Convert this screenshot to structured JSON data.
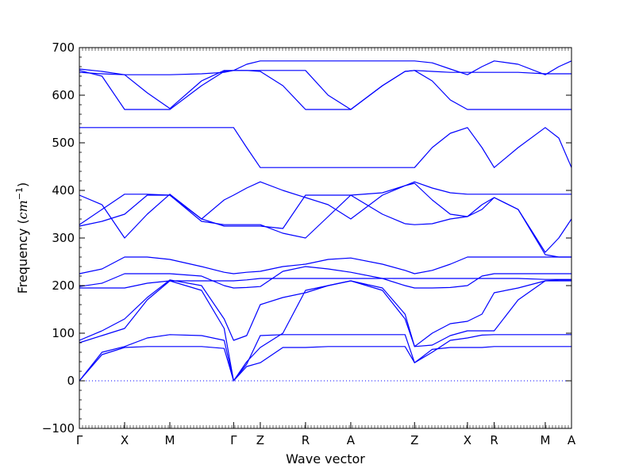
{
  "chart_data": {
    "type": "line",
    "title": "",
    "xlabel": "Wave vector",
    "ylabel_prefix": "Frequency (",
    "ylabel_unit": "cm",
    "ylabel_exp": "−1",
    "ylabel_suffix": ")",
    "ylim": [
      -100,
      700
    ],
    "yticks": [
      -100,
      0,
      100,
      200,
      300,
      400,
      500,
      600,
      700
    ],
    "xlim": [
      0,
      10.88
    ],
    "xticks": [
      {
        "label": "Γ",
        "x": 0.0
      },
      {
        "label": "X",
        "x": 1.0
      },
      {
        "label": "M",
        "x": 2.0
      },
      {
        "label": "Γ",
        "x": 3.41
      },
      {
        "label": "Z",
        "x": 4.0
      },
      {
        "label": "R",
        "x": 5.0
      },
      {
        "label": "A",
        "x": 6.0
      },
      {
        "label": "Z",
        "x": 7.41
      },
      {
        "label": "X",
        "x": 8.58
      },
      {
        "label": "R",
        "x": 9.17
      },
      {
        "label": "M",
        "x": 10.3
      },
      {
        "label": "A",
        "x": 10.88
      }
    ],
    "zero_line": true,
    "color": "#0000ff",
    "series": [
      {
        "x": [
          0,
          0.5,
          1.0,
          1.5,
          2.0,
          2.7,
          3.2,
          3.41,
          3.7,
          4.0,
          4.5,
          5.0,
          5.5,
          6.0,
          6.7,
          7.2,
          7.41,
          7.8,
          8.2,
          8.58,
          8.9,
          9.17,
          9.7,
          10.3,
          10.6,
          10.88
        ],
        "y": [
          0,
          55,
          70,
          72,
          72,
          72,
          68,
          0,
          30,
          38,
          70,
          70,
          72,
          72,
          72,
          72,
          38,
          66,
          70,
          70,
          70,
          72,
          72,
          72,
          72,
          72
        ]
      },
      {
        "x": [
          0,
          0.5,
          1.0,
          1.5,
          2.0,
          2.7,
          3.2,
          3.41,
          3.7,
          4.0,
          4.5,
          5.0,
          5.5,
          6.0,
          6.7,
          7.2,
          7.41,
          7.8,
          8.2,
          8.58,
          8.9,
          9.17,
          9.7,
          10.3,
          10.6,
          10.88
        ],
        "y": [
          0,
          60,
          72,
          90,
          97,
          95,
          85,
          0,
          35,
          95,
          97,
          97,
          97,
          97,
          97,
          97,
          38,
          60,
          85,
          90,
          96,
          97,
          97,
          97,
          97,
          97
        ]
      },
      {
        "x": [
          0,
          0.5,
          1.0,
          1.5,
          2.0,
          2.7,
          3.2,
          3.41,
          3.7,
          4.0,
          4.5,
          5.0,
          5.5,
          6.0,
          6.7,
          7.2,
          7.41,
          7.8,
          8.2,
          8.58,
          8.9,
          9.17,
          9.7,
          10.3,
          10.6,
          10.88
        ],
        "y": [
          80,
          95,
          110,
          170,
          210,
          190,
          110,
          0,
          40,
          70,
          100,
          190,
          200,
          210,
          190,
          130,
          72,
          75,
          95,
          105,
          105,
          105,
          170,
          210,
          210,
          210
        ]
      },
      {
        "x": [
          0,
          0.5,
          1.0,
          1.5,
          2.0,
          2.7,
          3.2,
          3.41,
          3.7,
          4.0,
          4.5,
          5.0,
          5.5,
          6.0,
          6.7,
          7.2,
          7.41,
          7.8,
          8.2,
          8.58,
          8.9,
          9.17,
          9.7,
          10.3,
          10.6,
          10.88
        ],
        "y": [
          85,
          105,
          130,
          175,
          212,
          200,
          130,
          85,
          95,
          160,
          175,
          185,
          200,
          210,
          195,
          140,
          72,
          100,
          120,
          125,
          140,
          185,
          195,
          210,
          212,
          212
        ]
      },
      {
        "x": [
          0,
          0.5,
          1.0,
          1.5,
          2.0,
          2.7,
          3.2,
          3.41,
          3.7,
          4.0,
          4.5,
          5.0,
          5.5,
          6.0,
          6.7,
          7.2,
          7.41,
          7.8,
          8.2,
          8.58,
          8.9,
          9.17,
          9.7,
          10.3,
          10.6,
          10.88
        ],
        "y": [
          195,
          195,
          195,
          205,
          210,
          210,
          210,
          210,
          212,
          215,
          215,
          215,
          215,
          215,
          215,
          215,
          215,
          215,
          215,
          215,
          215,
          215,
          215,
          213,
          213,
          213
        ]
      },
      {
        "x": [
          0,
          0.5,
          1.0,
          1.5,
          2.0,
          2.7,
          3.2,
          3.41,
          3.7,
          4.0,
          4.5,
          5.0,
          5.5,
          6.0,
          6.7,
          7.2,
          7.41,
          7.8,
          8.2,
          8.58,
          8.9,
          9.17,
          9.7,
          10.3,
          10.6,
          10.88
        ],
        "y": [
          198,
          205,
          225,
          225,
          225,
          220,
          200,
          195,
          196,
          198,
          230,
          240,
          235,
          228,
          215,
          200,
          195,
          195,
          196,
          200,
          220,
          225,
          225,
          225,
          225,
          225
        ]
      },
      {
        "x": [
          0,
          0.5,
          1.0,
          1.5,
          2.0,
          2.7,
          3.2,
          3.41,
          3.7,
          4.0,
          4.5,
          5.0,
          5.5,
          6.0,
          6.7,
          7.2,
          7.41,
          7.8,
          8.2,
          8.58,
          8.9,
          9.17,
          9.7,
          10.3,
          10.6,
          10.88
        ],
        "y": [
          225,
          235,
          260,
          260,
          255,
          240,
          228,
          225,
          228,
          230,
          240,
          245,
          255,
          258,
          245,
          232,
          225,
          232,
          245,
          260,
          260,
          260,
          260,
          260,
          260,
          260
        ]
      },
      {
        "x": [
          0,
          0.5,
          1.0,
          1.5,
          2.0,
          2.7,
          3.2,
          3.41,
          3.7,
          4.0,
          4.5,
          5.0,
          5.5,
          6.0,
          6.7,
          7.2,
          7.41,
          7.8,
          8.2,
          8.58,
          8.9,
          9.17,
          9.7,
          10.3,
          10.6,
          10.88
        ],
        "y": [
          325,
          335,
          350,
          390,
          390,
          335,
          328,
          328,
          328,
          328,
          310,
          300,
          345,
          390,
          350,
          330,
          328,
          330,
          340,
          345,
          370,
          385,
          360,
          270,
          300,
          340
        ]
      },
      {
        "x": [
          0,
          0.5,
          1.0,
          1.5,
          2.0,
          2.7,
          3.2,
          3.41,
          3.7,
          4.0,
          4.5,
          5.0,
          5.5,
          6.0,
          6.7,
          7.2,
          7.41,
          7.8,
          8.2,
          8.58,
          8.9,
          9.17,
          9.7,
          10.3,
          10.6,
          10.88
        ],
        "y": [
          390,
          370,
          300,
          350,
          392,
          340,
          325,
          325,
          325,
          325,
          320,
          390,
          390,
          390,
          395,
          410,
          415,
          380,
          350,
          345,
          360,
          385,
          360,
          265,
          260,
          260
        ]
      },
      {
        "x": [
          0,
          0.5,
          1.0,
          1.5,
          2.0,
          2.7,
          3.2,
          3.41,
          3.7,
          4.0,
          4.5,
          5.0,
          5.5,
          6.0,
          6.7,
          7.2,
          7.41,
          7.8,
          8.2,
          8.58,
          8.9,
          9.17,
          9.7,
          10.3,
          10.6,
          10.88
        ],
        "y": [
          328,
          360,
          392,
          392,
          390,
          340,
          380,
          390,
          405,
          418,
          400,
          385,
          370,
          340,
          390,
          410,
          418,
          405,
          395,
          392,
          392,
          392,
          392,
          392,
          392,
          392
        ]
      },
      {
        "x": [
          0,
          0.5,
          1.0,
          1.5,
          2.0,
          2.7,
          3.2,
          3.41,
          3.7,
          4.0,
          4.5,
          5.0,
          5.5,
          6.0,
          6.7,
          7.2,
          7.41,
          7.8,
          8.2,
          8.58,
          8.9,
          9.17,
          9.7,
          10.3,
          10.6,
          10.88
        ],
        "y": [
          532,
          532,
          532,
          532,
          532,
          532,
          532,
          532,
          490,
          448,
          448,
          448,
          448,
          448,
          448,
          448,
          448,
          490,
          520,
          532,
          490,
          448,
          490,
          532,
          510,
          448
        ]
      },
      {
        "x": [
          0,
          0.5,
          1.0,
          1.5,
          2.0,
          2.7,
          3.2,
          3.41,
          3.7,
          4.0,
          4.5,
          5.0,
          5.5,
          6.0,
          6.7,
          7.2,
          7.41,
          7.8,
          8.2,
          8.58,
          8.9,
          9.17,
          9.7,
          10.3,
          10.6,
          10.88
        ],
        "y": [
          652,
          640,
          570,
          570,
          570,
          620,
          650,
          652,
          652,
          652,
          652,
          652,
          600,
          570,
          620,
          650,
          652,
          630,
          590,
          570,
          570,
          570,
          570,
          570,
          570,
          570
        ]
      },
      {
        "x": [
          0,
          0.5,
          1.0,
          1.5,
          2.0,
          2.7,
          3.2,
          3.41,
          3.7,
          4.0,
          4.5,
          5.0,
          5.5,
          6.0,
          6.7,
          7.2,
          7.41,
          7.8,
          8.2,
          8.58,
          8.9,
          9.17,
          9.7,
          10.3,
          10.6,
          10.88
        ],
        "y": [
          648,
          645,
          643,
          643,
          643,
          645,
          648,
          652,
          652,
          650,
          620,
          570,
          570,
          570,
          620,
          650,
          652,
          650,
          648,
          648,
          648,
          648,
          648,
          645,
          645,
          645
        ]
      },
      {
        "x": [
          0,
          0.5,
          1.0,
          1.5,
          2.0,
          2.7,
          3.2,
          3.41,
          3.7,
          4.0,
          4.5,
          5.0,
          5.5,
          6.0,
          6.7,
          7.2,
          7.41,
          7.8,
          8.2,
          8.58,
          8.9,
          9.17,
          9.7,
          10.3,
          10.6,
          10.88
        ],
        "y": [
          655,
          650,
          643,
          605,
          572,
          630,
          652,
          652,
          665,
          672,
          672,
          672,
          672,
          672,
          672,
          672,
          672,
          668,
          655,
          643,
          660,
          672,
          665,
          643,
          660,
          672
        ]
      }
    ]
  }
}
